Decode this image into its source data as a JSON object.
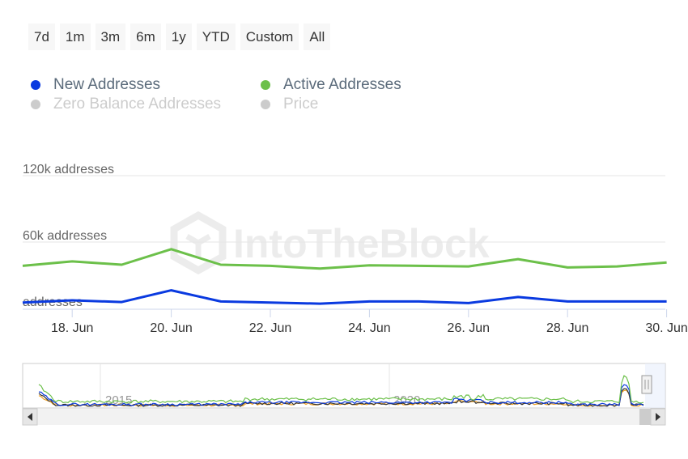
{
  "range_selector": {
    "buttons": [
      "7d",
      "1m",
      "3m",
      "6m",
      "1y",
      "YTD",
      "Custom",
      "All"
    ]
  },
  "legend": [
    {
      "label": "New Addresses",
      "color": "#0a3ae0",
      "active": true
    },
    {
      "label": "Active Addresses",
      "color": "#6cc04a",
      "active": true
    },
    {
      "label": "Zero Balance Addresses",
      "color": "#cccccc",
      "active": false
    },
    {
      "label": "Price",
      "color": "#cccccc",
      "active": false
    }
  ],
  "watermark": "IntoTheBlock",
  "chart_data": {
    "type": "line",
    "x_tick_labels": [
      "18. Jun",
      "20. Jun",
      "22. Jun",
      "24. Jun",
      "26. Jun",
      "28. Jun",
      "30. Jun"
    ],
    "y_tick_labels": [
      "120k addresses",
      "60k addresses",
      "addresses"
    ],
    "ylim": [
      0,
      120000
    ],
    "grid": true,
    "x_dates": [
      "2023-06-17",
      "2023-06-18",
      "2023-06-19",
      "2023-06-20",
      "2023-06-21",
      "2023-06-22",
      "2023-06-23",
      "2023-06-24",
      "2023-06-25",
      "2023-06-26",
      "2023-06-27",
      "2023-06-28",
      "2023-06-29",
      "2023-06-30"
    ],
    "series": [
      {
        "name": "New Addresses",
        "color": "#0a3ae0",
        "values": [
          6000,
          8000,
          6500,
          17000,
          7000,
          6000,
          5000,
          7000,
          7000,
          5500,
          11000,
          7000,
          7000,
          7000
        ]
      },
      {
        "name": "Active Addresses",
        "color": "#6cc04a",
        "values": [
          39000,
          43000,
          40000,
          54000,
          40000,
          39000,
          36500,
          39500,
          39000,
          38500,
          45000,
          37500,
          38500,
          42000
        ]
      }
    ],
    "navigator": {
      "labels": [
        "2015",
        "2020"
      ]
    }
  }
}
